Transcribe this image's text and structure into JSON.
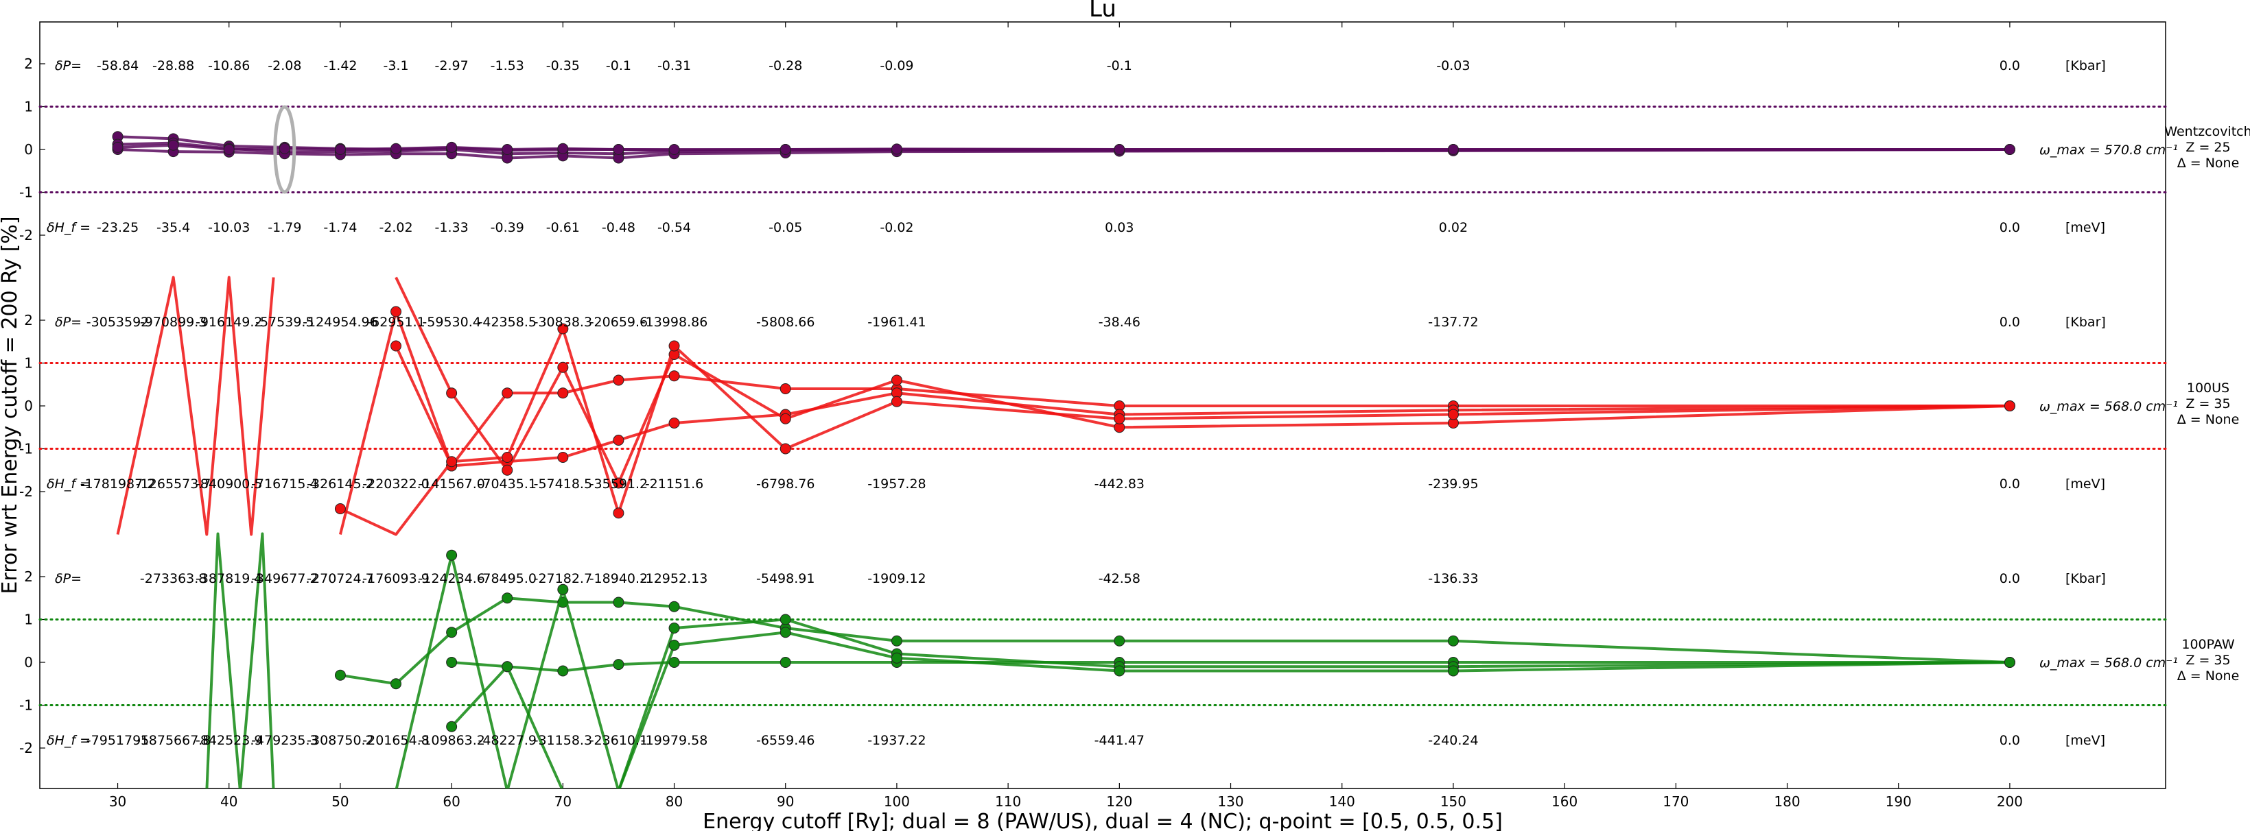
{
  "chart_data": {
    "type": "line",
    "title": "Lu",
    "xlabel": "Energy cutoff [Ry]; dual = 8 (PAW/US), dual = 4 (NC); q-point = [0.5, 0.5, 0.5]",
    "ylabel": "Error wrt Energy cutoff = 200 Ry [%]",
    "xlim": [
      23,
      214
    ],
    "x_ticks": [
      30,
      40,
      50,
      60,
      70,
      80,
      90,
      100,
      110,
      120,
      130,
      140,
      150,
      160,
      170,
      180,
      190,
      200
    ],
    "y_tick_labels": [
      "2",
      "1",
      "0",
      "-1",
      "-2"
    ],
    "grid": false,
    "band_ylim": [
      -3,
      3
    ],
    "dP_label": "δP=",
    "dH_label": "δH_f =",
    "row_x": [
      30,
      35,
      40,
      45,
      50,
      55,
      60,
      65,
      70,
      75,
      80,
      90,
      100,
      120,
      150,
      200
    ],
    "panels": [
      {
        "name": "Wentzcovitch",
        "z_label": "Z = 25",
        "delta_label": "Δ = None",
        "color": "#5b0a5e",
        "omega_label": "ω_max = 570.8 cm⁻¹",
        "dP_unit": "[Kbar]",
        "dH_unit": "[meV]",
        "dP_values": [
          "-58.84",
          "-28.88",
          "-10.86",
          "-2.08",
          "-1.42",
          "-3.1",
          "-2.97",
          "-1.53",
          "-0.35",
          "-0.1",
          "-0.31",
          "-0.28",
          "-0.09",
          "-0.1",
          "-0.03",
          "0.0"
        ],
        "dH_values": [
          "-23.25",
          "-35.4",
          "-10.03",
          "-1.79",
          "-1.74",
          "-2.02",
          "-1.33",
          "-0.39",
          "-0.61",
          "-0.48",
          "-0.54",
          "-0.05",
          "-0.02",
          "0.03",
          "0.02",
          "0.0"
        ],
        "series": [
          {
            "x": [
              30,
              35,
              40,
              45,
              50,
              55,
              60,
              65,
              70,
              75,
              80,
              90,
              100,
              120,
              150,
              200
            ],
            "y": [
              0.3,
              0.25,
              0.08,
              0.05,
              0.02,
              0.0,
              0.03,
              -0.02,
              0.0,
              0.0,
              -0.02,
              0.0,
              0.0,
              0.0,
              0.0,
              0.0
            ]
          },
          {
            "x": [
              30,
              35,
              40,
              45,
              50,
              55,
              60,
              65,
              70,
              75,
              80,
              90,
              100,
              120,
              150,
              200
            ],
            "y": [
              0.12,
              0.15,
              0.02,
              -0.05,
              -0.05,
              -0.04,
              0.0,
              -0.1,
              -0.08,
              -0.1,
              -0.05,
              -0.03,
              -0.02,
              -0.03,
              -0.02,
              0.0
            ]
          },
          {
            "x": [
              30,
              35,
              40,
              45,
              50,
              55,
              60,
              65,
              70,
              75,
              80,
              90,
              100,
              120,
              150,
              200
            ],
            "y": [
              0.0,
              -0.05,
              -0.06,
              -0.1,
              -0.12,
              -0.1,
              -0.1,
              -0.2,
              -0.15,
              -0.2,
              -0.1,
              -0.08,
              -0.05,
              -0.04,
              -0.03,
              0.0
            ]
          },
          {
            "x": [
              30,
              35,
              40,
              45,
              50,
              55,
              60,
              65,
              70,
              75,
              80,
              90,
              100,
              120,
              150,
              200
            ],
            "y": [
              0.05,
              0.1,
              0.0,
              0.02,
              0.0,
              0.02,
              0.05,
              0.0,
              0.02,
              0.0,
              0.0,
              0.0,
              0.01,
              0.0,
              0.0,
              0.0
            ]
          }
        ]
      },
      {
        "name": "100US",
        "z_label": "Z = 35",
        "delta_label": "Δ = None",
        "color": "#ee1111",
        "omega_label": "ω_max = 568.0 cm⁻¹",
        "dP_unit": "[Kbar]",
        "dH_unit": "[meV]",
        "dP_values": [
          "-3053592",
          "-970899.3",
          "-916149.2",
          "-57539.5",
          "-124954.96",
          "-62951.1",
          "-59530.4",
          "-42358.5",
          "-30838.3",
          "-20659.6",
          "-13998.86",
          "-5808.66",
          "-1961.41",
          "-38.46",
          "-137.72",
          "0.0"
        ],
        "dH_values": [
          "-1781987.2",
          "-1265573.7",
          "-840900.5",
          "-716715.4",
          "-326145.2",
          "-220322.0",
          "-141567.0",
          "-70435.1",
          "-57418.5",
          "-35591.2",
          "-21151.6",
          "-6798.76",
          "-1957.28",
          "-442.83",
          "-239.95",
          "0.0"
        ],
        "series": [
          {
            "x": [
              30,
              35,
              38,
              40,
              42,
              44
            ],
            "y": [
              -3,
              3,
              -3,
              3,
              -3,
              3
            ]
          },
          {
            "x": [
              50,
              55,
              60,
              65,
              70,
              75,
              80,
              90,
              100,
              120,
              150,
              200
            ],
            "y": [
              -3,
              2.2,
              -1.4,
              0.3,
              0.3,
              0.6,
              0.7,
              0.4,
              0.4,
              0.0,
              0.0,
              0.0
            ]
          },
          {
            "x": [
              55,
              60,
              65,
              70,
              75,
              80,
              90,
              100,
              120,
              150,
              200
            ],
            "y": [
              1.4,
              -1.4,
              -1.3,
              -1.2,
              -0.8,
              -0.4,
              -0.2,
              0.3,
              -0.2,
              -0.1,
              0.0
            ]
          },
          {
            "x": [
              55,
              60,
              65,
              70,
              75,
              80,
              90,
              100,
              120,
              150,
              200
            ],
            "y": [
              3.0,
              0.3,
              -1.5,
              0.9,
              -1.8,
              1.2,
              -0.3,
              0.6,
              -0.5,
              -0.4,
              0.0
            ]
          },
          {
            "x": [
              50,
              55,
              60,
              65,
              70,
              75,
              80,
              90,
              100,
              120,
              150,
              200
            ],
            "y": [
              -2.4,
              -3.0,
              -1.3,
              -1.2,
              1.8,
              -2.5,
              1.4,
              -1.0,
              0.1,
              -0.3,
              -0.2,
              0.0
            ]
          }
        ]
      },
      {
        "name": "100PAW",
        "z_label": "Z = 35",
        "delta_label": "Δ = None",
        "color": "#118811",
        "omega_label": "ω_max = 568.0 cm⁻¹",
        "dP_unit": "[Kbar]",
        "dH_unit": "[meV]",
        "dP_values": [
          "",
          "-273363.8",
          "-387819.4",
          "-349677.2",
          "-270724.7",
          "-176093.9",
          "-124234.6",
          "-78495.0",
          "-27182.7",
          "-18940.2",
          "-12952.13",
          "-5498.91",
          "-1909.12",
          "-42.58",
          "-136.33",
          "0.0"
        ],
        "dH_values": [
          "-7951795",
          "-1875667.8",
          "-842523.9",
          "-479235.3",
          "-308750.2",
          "-201654.8",
          "-109863.2",
          "-48227.9",
          "-31158.3",
          "-23610.1",
          "-19979.58",
          "-6559.46",
          "-1937.22",
          "-441.47",
          "-240.24",
          "0.0"
        ],
        "series": [
          {
            "x": [
              38,
              39,
              41,
              43,
              44
            ],
            "y": [
              -3,
              3,
              -3,
              3,
              -3
            ]
          },
          {
            "x": [
              50,
              55,
              60,
              65,
              70,
              75,
              80,
              90,
              100,
              120,
              150,
              200
            ],
            "y": [
              -0.3,
              -0.5,
              0.7,
              1.5,
              1.4,
              1.4,
              1.3,
              0.8,
              0.5,
              0.5,
              0.5,
              0.0
            ]
          },
          {
            "x": [
              60,
              65,
              70,
              75,
              80,
              90,
              100,
              120,
              150,
              200
            ],
            "y": [
              -1.5,
              -0.1,
              -0.2,
              -0.05,
              0.0,
              0.0,
              0.0,
              0.0,
              0.0,
              0.0
            ]
          },
          {
            "x": [
              55,
              60,
              65,
              70,
              75,
              80,
              90,
              100,
              120,
              150,
              200
            ],
            "y": [
              -3.0,
              2.5,
              -3.0,
              1.7,
              -3.0,
              0.8,
              1.0,
              0.2,
              -0.1,
              -0.1,
              0.0
            ]
          },
          {
            "x": [
              60,
              65,
              70,
              75,
              80,
              90,
              100,
              120,
              150,
              200
            ],
            "y": [
              0.0,
              -0.1,
              -3.0,
              -3.0,
              0.4,
              0.7,
              0.1,
              -0.2,
              -0.2,
              0.0
            ]
          }
        ]
      }
    ]
  }
}
